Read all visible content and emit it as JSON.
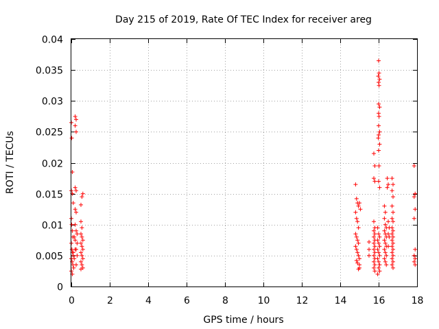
{
  "chart_data": {
    "type": "scatter",
    "title": "Day 215 of 2019, Rate Of TEC Index for receiver areg",
    "xlabel": "GPS time / hours",
    "ylabel": "ROTI / TECUs",
    "xlim": [
      0,
      18
    ],
    "ylim": [
      0,
      0.04
    ],
    "x_ticks": [
      0,
      2,
      4,
      6,
      8,
      10,
      12,
      14,
      16,
      18
    ],
    "x_tick_labels": [
      "0",
      "2",
      "4",
      "6",
      "8",
      "10",
      "12",
      "14",
      "16",
      "18"
    ],
    "y_ticks": [
      0,
      0.005,
      0.01,
      0.015,
      0.02,
      0.025,
      0.03,
      0.035,
      0.04
    ],
    "y_tick_labels": [
      "0",
      "0.005",
      "0.01",
      "0.015",
      "0.02",
      "0.025",
      "0.03",
      "0.035",
      "0.04"
    ],
    "grid": true,
    "marker": "+",
    "series": [
      {
        "name": "ROTI",
        "color": "#ff0000",
        "points": [
          [
            0.0,
            0.0265
          ],
          [
            0.02,
            0.024
          ],
          [
            0.05,
            0.0185
          ],
          [
            0.0,
            0.0155
          ],
          [
            0.05,
            0.015
          ],
          [
            0.1,
            0.0135
          ],
          [
            0.0,
            0.011
          ],
          [
            0.02,
            0.01
          ],
          [
            0.05,
            0.009
          ],
          [
            0.08,
            0.008
          ],
          [
            0.0,
            0.007
          ],
          [
            0.03,
            0.006
          ],
          [
            0.06,
            0.0055
          ],
          [
            0.1,
            0.005
          ],
          [
            0.0,
            0.0045
          ],
          [
            0.04,
            0.004
          ],
          [
            0.08,
            0.0035
          ],
          [
            0.12,
            0.003
          ],
          [
            0.0,
            0.0025
          ],
          [
            0.05,
            0.002
          ],
          [
            0.1,
            0.0055
          ],
          [
            0.15,
            0.0045
          ],
          [
            0.2,
            0.006
          ],
          [
            0.25,
            0.0035
          ],
          [
            0.3,
            0.007
          ],
          [
            0.2,
            0.0275
          ],
          [
            0.25,
            0.027
          ],
          [
            0.2,
            0.026
          ],
          [
            0.25,
            0.025
          ],
          [
            0.2,
            0.016
          ],
          [
            0.25,
            0.0155
          ],
          [
            0.2,
            0.0125
          ],
          [
            0.25,
            0.012
          ],
          [
            0.2,
            0.01
          ],
          [
            0.25,
            0.009
          ],
          [
            0.15,
            0.008
          ],
          [
            0.2,
            0.0075
          ],
          [
            0.3,
            0.0085
          ],
          [
            0.25,
            0.006
          ],
          [
            0.3,
            0.005
          ],
          [
            0.5,
            0.0105
          ],
          [
            0.55,
            0.0095
          ],
          [
            0.5,
            0.0085
          ],
          [
            0.55,
            0.008
          ],
          [
            0.6,
            0.0075
          ],
          [
            0.5,
            0.007
          ],
          [
            0.55,
            0.0065
          ],
          [
            0.6,
            0.006
          ],
          [
            0.5,
            0.0055
          ],
          [
            0.55,
            0.005
          ],
          [
            0.6,
            0.0045
          ],
          [
            0.5,
            0.004
          ],
          [
            0.55,
            0.0035
          ],
          [
            0.6,
            0.003
          ],
          [
            0.5,
            0.0028
          ],
          [
            0.6,
            0.015
          ],
          [
            0.55,
            0.0145
          ],
          [
            0.5,
            0.0132
          ],
          [
            14.8,
            0.0165
          ],
          [
            14.85,
            0.0142
          ],
          [
            14.9,
            0.0135
          ],
          [
            14.95,
            0.013
          ],
          [
            14.8,
            0.012
          ],
          [
            14.85,
            0.011
          ],
          [
            14.9,
            0.0105
          ],
          [
            14.95,
            0.0095
          ],
          [
            14.8,
            0.0085
          ],
          [
            14.85,
            0.008
          ],
          [
            14.9,
            0.0075
          ],
          [
            14.95,
            0.007
          ],
          [
            14.8,
            0.0065
          ],
          [
            14.85,
            0.006
          ],
          [
            14.9,
            0.0055
          ],
          [
            14.95,
            0.005
          ],
          [
            15.0,
            0.0045
          ],
          [
            14.85,
            0.0042
          ],
          [
            14.9,
            0.0038
          ],
          [
            15.0,
            0.0035
          ],
          [
            15.0,
            0.003
          ],
          [
            14.95,
            0.0028
          ],
          [
            15.0,
            0.0135
          ],
          [
            15.05,
            0.0125
          ],
          [
            15.5,
            0.0072
          ],
          [
            15.5,
            0.006
          ],
          [
            15.5,
            0.005
          ],
          [
            15.75,
            0.0215
          ],
          [
            15.8,
            0.0195
          ],
          [
            15.75,
            0.0175
          ],
          [
            15.8,
            0.017
          ],
          [
            15.75,
            0.0105
          ],
          [
            15.8,
            0.0095
          ],
          [
            15.75,
            0.009
          ],
          [
            15.8,
            0.0085
          ],
          [
            15.75,
            0.008
          ],
          [
            15.8,
            0.0075
          ],
          [
            15.75,
            0.007
          ],
          [
            15.8,
            0.0065
          ],
          [
            15.75,
            0.006
          ],
          [
            15.8,
            0.0055
          ],
          [
            15.75,
            0.005
          ],
          [
            15.8,
            0.0045
          ],
          [
            15.75,
            0.004
          ],
          [
            15.8,
            0.0035
          ],
          [
            15.75,
            0.003
          ],
          [
            15.8,
            0.0025
          ],
          [
            16.0,
            0.0365
          ],
          [
            16.02,
            0.0345
          ],
          [
            15.98,
            0.034
          ],
          [
            16.05,
            0.0335
          ],
          [
            16.0,
            0.033
          ],
          [
            16.02,
            0.0325
          ],
          [
            16.0,
            0.0295
          ],
          [
            16.05,
            0.029
          ],
          [
            16.0,
            0.028
          ],
          [
            16.02,
            0.0275
          ],
          [
            16.0,
            0.026
          ],
          [
            16.05,
            0.025
          ],
          [
            16.0,
            0.0245
          ],
          [
            15.98,
            0.024
          ],
          [
            16.05,
            0.023
          ],
          [
            16.0,
            0.022
          ],
          [
            16.02,
            0.0195
          ],
          [
            16.0,
            0.017
          ],
          [
            16.05,
            0.016
          ],
          [
            15.95,
            0.0095
          ],
          [
            16.0,
            0.0085
          ],
          [
            16.05,
            0.008
          ],
          [
            15.95,
            0.0075
          ],
          [
            16.0,
            0.007
          ],
          [
            16.05,
            0.0065
          ],
          [
            15.95,
            0.006
          ],
          [
            16.0,
            0.0055
          ],
          [
            16.05,
            0.005
          ],
          [
            15.95,
            0.0045
          ],
          [
            16.0,
            0.004
          ],
          [
            16.05,
            0.0035
          ],
          [
            16.0,
            0.003
          ],
          [
            16.05,
            0.0025
          ],
          [
            15.95,
            0.002
          ],
          [
            16.3,
            0.013
          ],
          [
            16.35,
            0.012
          ],
          [
            16.3,
            0.011
          ],
          [
            16.35,
            0.01
          ],
          [
            16.4,
            0.0095
          ],
          [
            16.3,
            0.009
          ],
          [
            16.35,
            0.0085
          ],
          [
            16.4,
            0.008
          ],
          [
            16.3,
            0.0075
          ],
          [
            16.35,
            0.007
          ],
          [
            16.4,
            0.0065
          ],
          [
            16.3,
            0.006
          ],
          [
            16.35,
            0.0055
          ],
          [
            16.4,
            0.005
          ],
          [
            16.3,
            0.0045
          ],
          [
            16.35,
            0.004
          ],
          [
            16.4,
            0.0035
          ],
          [
            16.45,
            0.0175
          ],
          [
            16.5,
            0.0165
          ],
          [
            16.45,
            0.016
          ],
          [
            16.5,
            0.0105
          ],
          [
            16.55,
            0.0095
          ],
          [
            16.5,
            0.0085
          ],
          [
            16.55,
            0.008
          ],
          [
            16.5,
            0.0065
          ],
          [
            16.7,
            0.0175
          ],
          [
            16.75,
            0.0165
          ],
          [
            16.7,
            0.0155
          ],
          [
            16.75,
            0.0145
          ],
          [
            16.7,
            0.013
          ],
          [
            16.75,
            0.012
          ],
          [
            16.7,
            0.011
          ],
          [
            16.75,
            0.0105
          ],
          [
            16.7,
            0.0095
          ],
          [
            16.75,
            0.009
          ],
          [
            16.7,
            0.0085
          ],
          [
            16.75,
            0.008
          ],
          [
            16.7,
            0.0075
          ],
          [
            16.75,
            0.007
          ],
          [
            16.7,
            0.0065
          ],
          [
            16.75,
            0.006
          ],
          [
            16.7,
            0.0055
          ],
          [
            16.75,
            0.005
          ],
          [
            16.7,
            0.0045
          ],
          [
            16.75,
            0.004
          ],
          [
            16.7,
            0.0035
          ],
          [
            16.75,
            0.003
          ],
          [
            17.85,
            0.0195
          ],
          [
            17.9,
            0.015
          ],
          [
            17.85,
            0.0145
          ],
          [
            17.9,
            0.0125
          ],
          [
            17.85,
            0.011
          ],
          [
            17.9,
            0.006
          ],
          [
            17.85,
            0.005
          ],
          [
            17.9,
            0.0045
          ],
          [
            17.85,
            0.004
          ],
          [
            17.9,
            0.0035
          ]
        ]
      }
    ]
  }
}
